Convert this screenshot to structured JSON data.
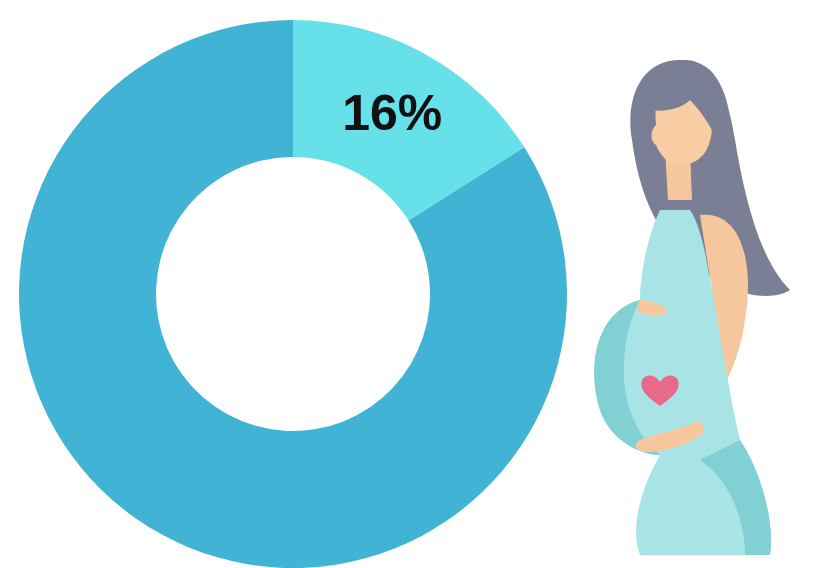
{
  "chart_data": {
    "type": "donut",
    "values": [
      16,
      84
    ],
    "value_labels": [
      "16%",
      null
    ],
    "colors": [
      "#67e1e9",
      "#41b4d5"
    ],
    "data_labels": true
  }
}
